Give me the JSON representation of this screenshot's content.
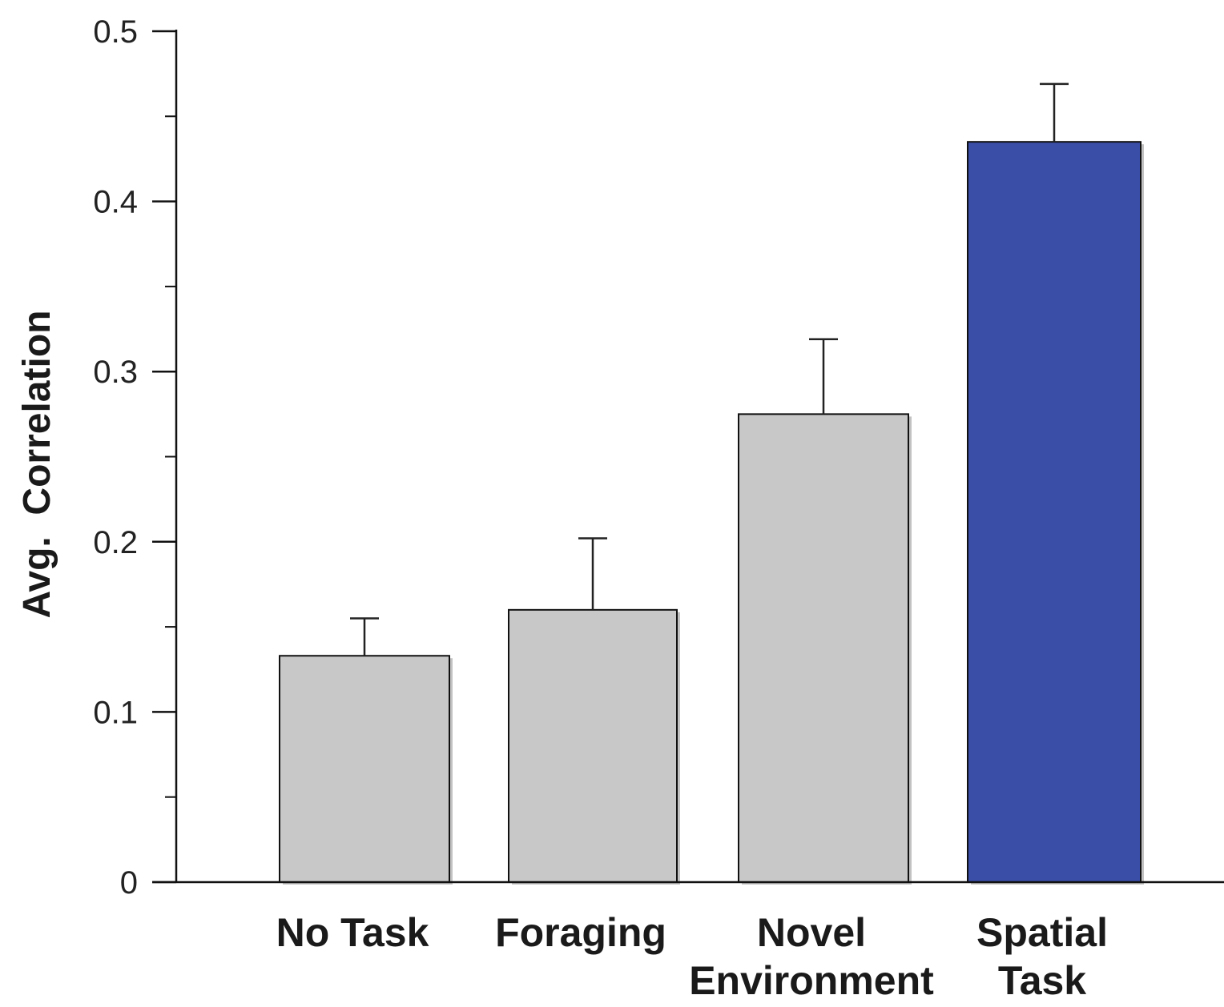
{
  "chart_data": {
    "type": "bar",
    "categories": [
      [
        "No Task"
      ],
      [
        "Foraging"
      ],
      [
        "Novel",
        "Environment"
      ],
      [
        "Spatial",
        "Task"
      ]
    ],
    "values": [
      0.133,
      0.16,
      0.275,
      0.435
    ],
    "error_upper": [
      0.155,
      0.202,
      0.319,
      0.469
    ],
    "colors": [
      "#c8c8c8",
      "#c8c8c8",
      "#c8c8c8",
      "#3a4ea8"
    ],
    "ylabel": "Avg.  Correlation",
    "xlabel": "",
    "title": "",
    "ylim": [
      0,
      0.5
    ],
    "yticks_major": [
      0,
      0.1,
      0.2,
      0.3,
      0.4,
      0.5
    ],
    "ytick_labels": [
      "0",
      "0.1",
      "0.2",
      "0.3",
      "0.4",
      "0.5"
    ],
    "yticks_minor": [
      0.05,
      0.15,
      0.25,
      0.35,
      0.45
    ],
    "grid": false,
    "legend": "none"
  }
}
